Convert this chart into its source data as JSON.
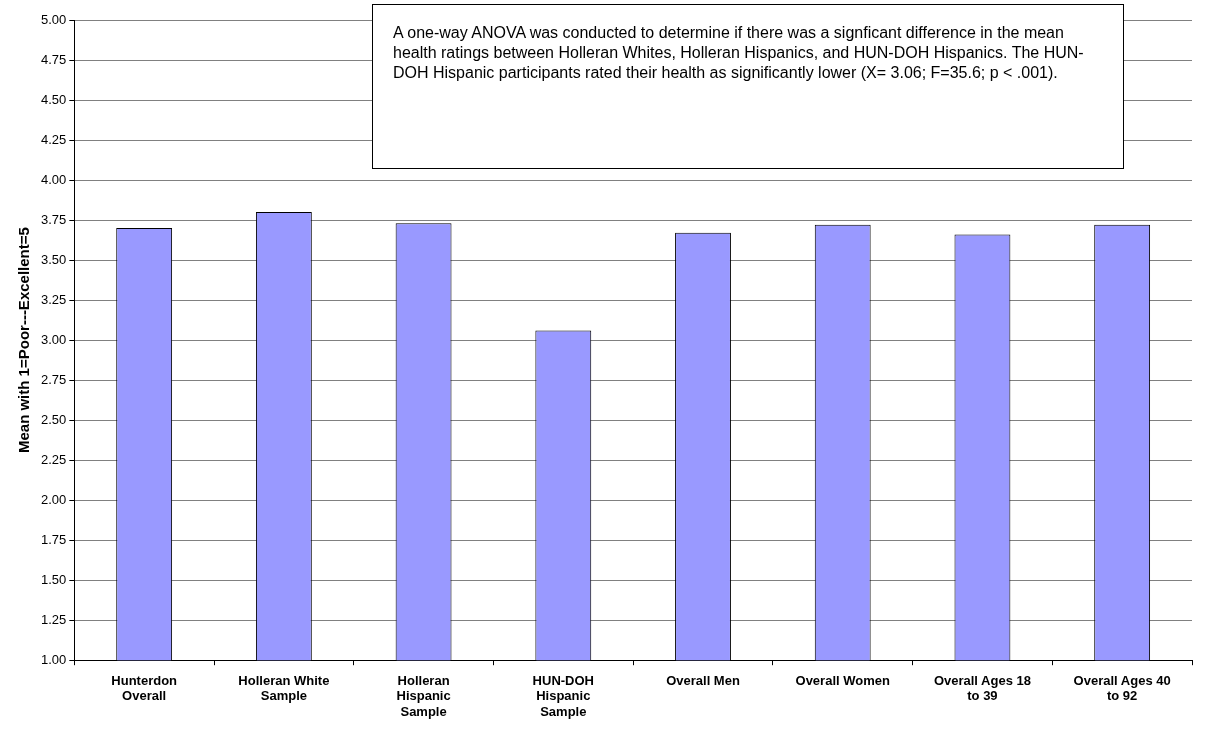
{
  "chart_data": {
    "type": "bar",
    "ylabel": "Mean with 1=Poor---Excellent=5",
    "categories": [
      "Hunterdon Overall",
      "Holleran White Sample",
      "Holleran Hispanic Sample",
      "HUN-DOH Hispanic Sample",
      "Overall Men",
      "Overall Women",
      "Overall Ages 18 to 39",
      "Overall Ages 40 to 92"
    ],
    "values": [
      3.7,
      3.8,
      3.73,
      3.06,
      3.67,
      3.72,
      3.66,
      3.72
    ],
    "color": "#9999ff",
    "ylim": [
      1,
      5
    ],
    "yticks": [
      {
        "value": 1,
        "label": "1.00"
      },
      {
        "value": 1.25,
        "label": "1.25"
      },
      {
        "value": 1.5,
        "label": "1.50"
      },
      {
        "value": 1.75,
        "label": "1.75"
      },
      {
        "value": 2,
        "label": "2.00"
      },
      {
        "value": 2.25,
        "label": "2.25"
      },
      {
        "value": 2.5,
        "label": "2.50"
      },
      {
        "value": 2.75,
        "label": "2.75"
      },
      {
        "value": 3,
        "label": "3.00"
      },
      {
        "value": 3.25,
        "label": "3.25"
      },
      {
        "value": 3.5,
        "label": "3.50"
      },
      {
        "value": 3.75,
        "label": "3.75"
      },
      {
        "value": 4,
        "label": "4.00"
      },
      {
        "value": 4.25,
        "label": "4.25"
      },
      {
        "value": 4.5,
        "label": "4.50"
      },
      {
        "value": 4.75,
        "label": "4.75"
      },
      {
        "value": 5,
        "label": "5.00"
      }
    ],
    "grid": "y",
    "annotations": [
      "A one-way ANOVA was conducted to determine if there was a signficant difference in the mean health ratings between Holleran Whites, Holleran Hispanics, and HUN-DOH Hispanics.  The HUN-DOH Hispanic participants rated their health as significantly lower (X= 3.06; F=35.6; p < .001)."
    ]
  }
}
